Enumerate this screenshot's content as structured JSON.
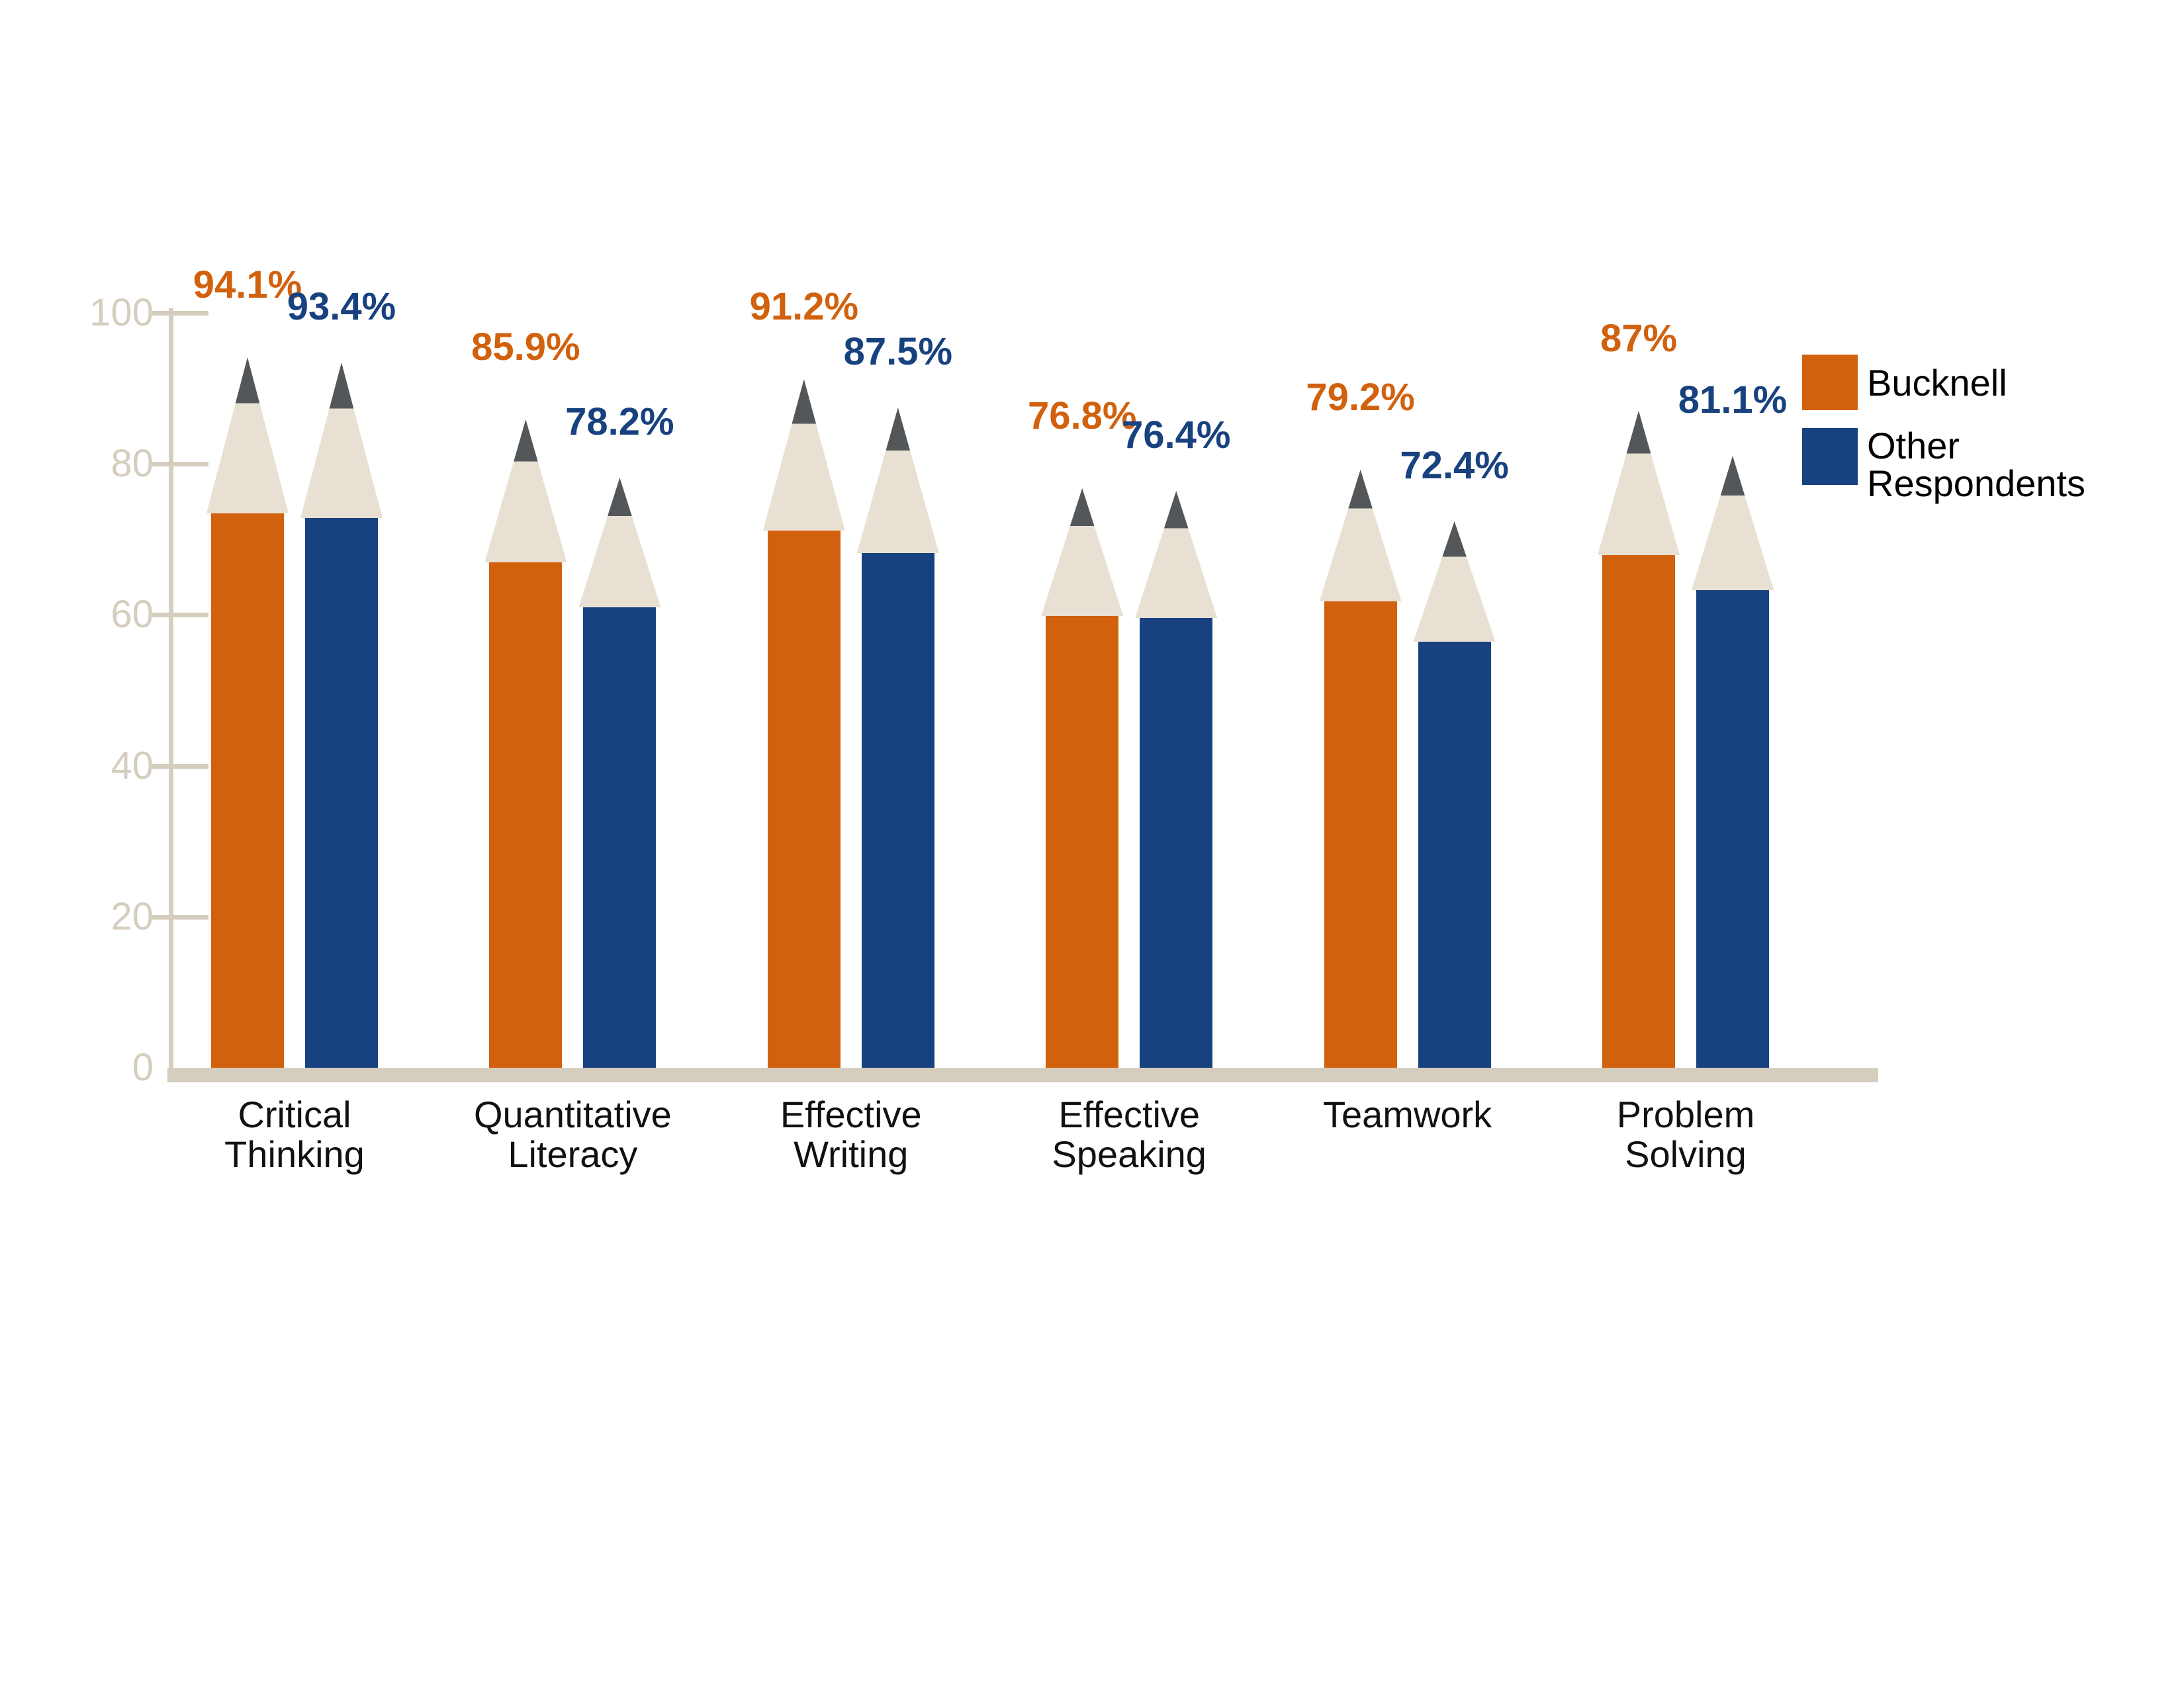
{
  "chart_data": {
    "type": "bar",
    "title": "",
    "xlabel": "",
    "ylabel": "",
    "categories": [
      [
        "Critical",
        "Thinking"
      ],
      [
        "Quantitative",
        "Literacy"
      ],
      [
        "Effective",
        "Writing"
      ],
      [
        "Effective",
        "Speaking"
      ],
      [
        "Teamwork"
      ],
      [
        "Problem",
        "Solving"
      ]
    ],
    "series": [
      {
        "name": "Bucknell",
        "color": "#D2610D",
        "values": [
          94.1,
          85.9,
          91.2,
          76.8,
          79.2,
          87
        ],
        "labels": [
          "94.1%",
          "85.9%",
          "91.2%",
          "76.8%",
          "79.2%",
          "87%"
        ]
      },
      {
        "name": "Other Respondents",
        "color": "#18427F",
        "values": [
          93.4,
          78.2,
          87.5,
          76.4,
          72.4,
          81.1
        ],
        "labels": [
          "93.4%",
          "78.2%",
          "87.5%",
          "76.4%",
          "72.4%",
          "81.1%"
        ]
      }
    ],
    "ylim": [
      0,
      100
    ],
    "yticks": [
      0,
      20,
      40,
      60,
      80,
      100
    ],
    "grid": false,
    "legend_position": "right"
  },
  "legend": {
    "items": [
      {
        "label": "Bucknell",
        "color": "#D2610D"
      },
      {
        "label": "Other Respondents",
        "color": "#18427F"
      }
    ]
  },
  "style": {
    "pencil_wood": "#E8E1D3",
    "pencil_lead": "#54575A",
    "axis_color": "#D5CDBE",
    "category_text": "#111111",
    "background": "#FFFFFF"
  }
}
